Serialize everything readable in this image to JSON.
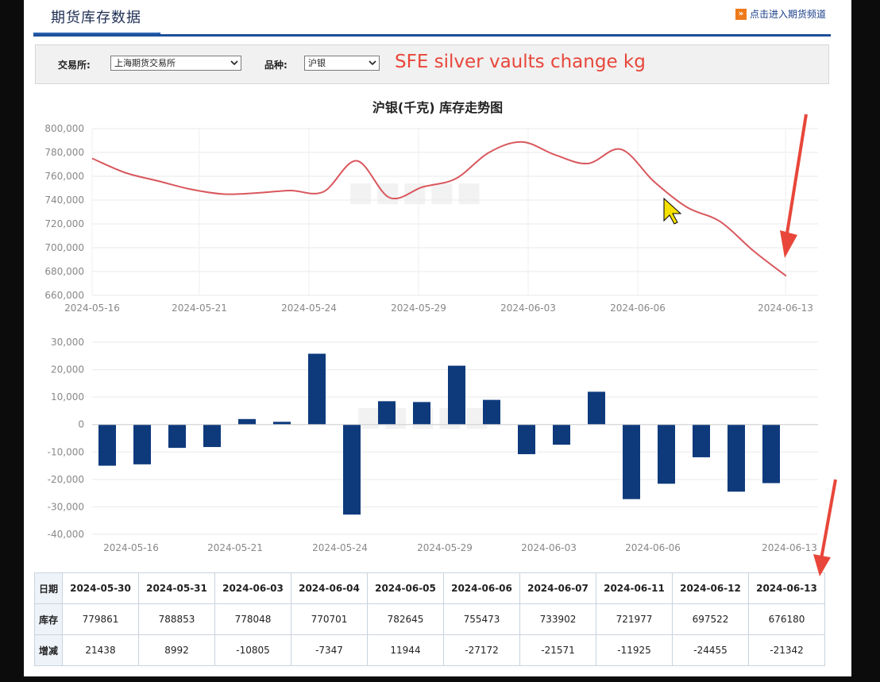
{
  "header": {
    "title": "期货库存数据",
    "channel_link": "点击进入期货频道",
    "channel_icon": "»"
  },
  "filters": {
    "exchange_label": "交易所:",
    "exchange_value": "上海期货交易所",
    "variety_label": "品种:",
    "variety_value": "沪银"
  },
  "annotation": {
    "text": "SFE silver vaults change kg",
    "color": "#e8463a"
  },
  "colors": {
    "line": "#d9575d",
    "bar": "#0e3a7c",
    "header_rule": "#1d4f99",
    "arrow": "#e8463a"
  },
  "chart_data": [
    {
      "type": "line",
      "title": "沪银(千克) 库存走势图",
      "x_ticks": [
        "2024-05-16",
        "2024-05-21",
        "2024-05-24",
        "2024-05-29",
        "2024-06-03",
        "2024-06-06",
        "2024-06-13"
      ],
      "y_ticks": [
        "800,000",
        "780,000",
        "760,000",
        "740,000",
        "720,000",
        "700,000",
        "680,000",
        "660,000"
      ],
      "ylim": [
        660000,
        800000
      ],
      "grid": true,
      "series": [
        {
          "values": [
            775000,
            763000,
            756000,
            749000,
            745000,
            746000,
            748000,
            747000,
            773000,
            742000,
            751000,
            758000,
            779861,
            788853,
            778048,
            770701,
            782645,
            755473,
            733902,
            721977,
            697522,
            676180
          ]
        }
      ]
    },
    {
      "type": "bar",
      "x_ticks": [
        "2024-05-16",
        "2024-05-21",
        "2024-05-24",
        "2024-05-29",
        "2024-06-03",
        "2024-06-06",
        "2024-06-13"
      ],
      "y_ticks": [
        "30,000",
        "20,000",
        "10,000",
        "0",
        "-10,000",
        "-20,000",
        "-30,000",
        "-40,000"
      ],
      "ylim": [
        -40000,
        30000
      ],
      "grid": true,
      "series": [
        {
          "values": [
            -15000,
            -14500,
            -8500,
            -8200,
            2000,
            1000,
            25800,
            -32800,
            8500,
            8200,
            21438,
            8992,
            -10805,
            -7347,
            11944,
            -27172,
            -21571,
            -11925,
            -24455,
            -21342
          ]
        }
      ]
    }
  ],
  "table": {
    "row_headers": [
      "日期",
      "库存",
      "增减"
    ],
    "dates": [
      "2024-05-30",
      "2024-05-31",
      "2024-06-03",
      "2024-06-04",
      "2024-06-05",
      "2024-06-06",
      "2024-06-07",
      "2024-06-11",
      "2024-06-12",
      "2024-06-13"
    ],
    "stocks": [
      "779861",
      "788853",
      "778048",
      "770701",
      "782645",
      "755473",
      "733902",
      "721977",
      "697522",
      "676180"
    ],
    "changes": [
      "21438",
      "8992",
      "-10805",
      "-7347",
      "11944",
      "-27172",
      "-21571",
      "-11925",
      "-24455",
      "-21342"
    ]
  }
}
